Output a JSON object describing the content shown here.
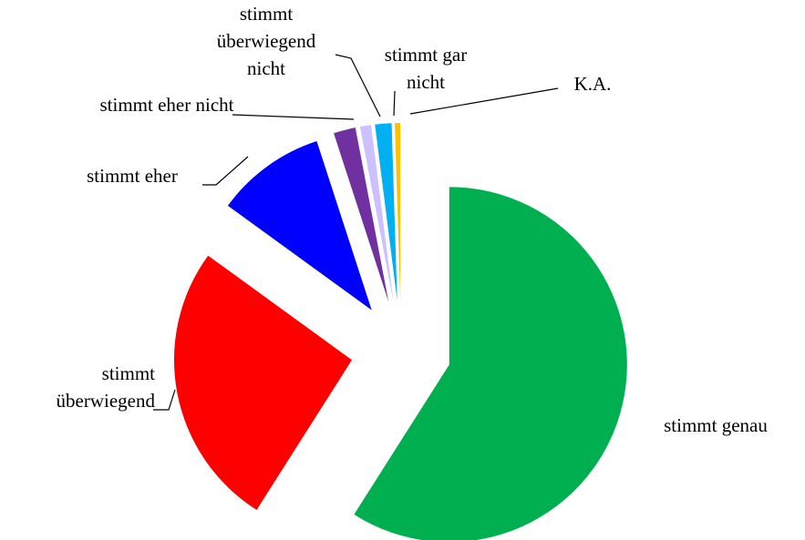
{
  "chart_data": {
    "type": "pie",
    "categories": [
      "stimmt genau",
      "stimmt überwiegend",
      "stimmt eher",
      "stimmt eher nicht",
      "stimmt überwiegend nicht",
      "stimmt gar nicht",
      "K.A."
    ],
    "values": [
      59,
      26,
      10,
      2,
      1,
      1.5,
      0.5
    ],
    "colors": [
      "#00b050",
      "#ff0000",
      "#0000ff",
      "#7030a0",
      "#ccc0ff",
      "#00b0f0",
      "#ffc000"
    ]
  }
}
